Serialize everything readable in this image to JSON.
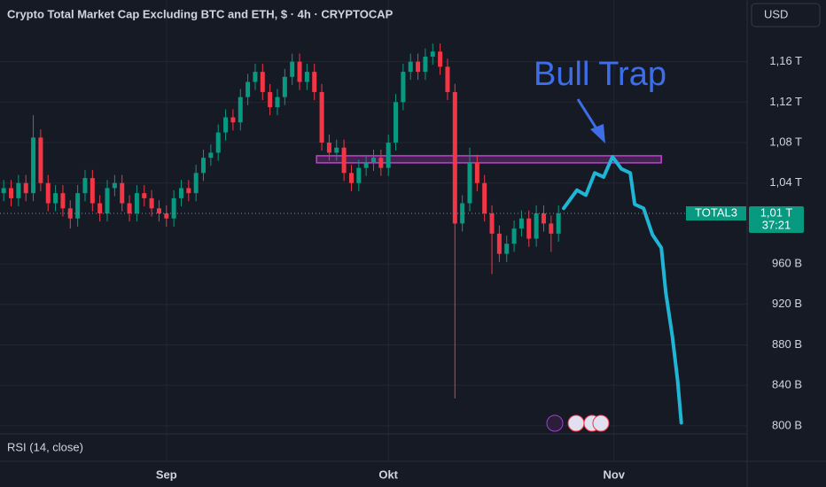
{
  "chart_data": {
    "type": "candlestick",
    "title": "Crypto Total Market Cap Excluding BTC and ETH, $ · 4h · CRYPTOCAP",
    "currency_button": "USD",
    "pane_label": "RSI (14, close)",
    "annotation": "Bull Trap",
    "up_color": "#089981",
    "down_color": "#f23645",
    "xlim": [
      -0.5,
      100.5
    ],
    "ylim": [
      792,
      1221
    ],
    "xticks": [
      {
        "value": 22,
        "label": "Sep"
      },
      {
        "value": 52,
        "label": "Okt"
      },
      {
        "value": 82.5,
        "label": "Nov"
      }
    ],
    "yticks": [
      {
        "value": 800,
        "label": "800 B"
      },
      {
        "value": 840,
        "label": "840 B"
      },
      {
        "value": 880,
        "label": "880 B"
      },
      {
        "value": 920,
        "label": "920 B"
      },
      {
        "value": 960,
        "label": "960 B"
      },
      {
        "value": 1040,
        "label": "1,04 T"
      },
      {
        "value": 1080,
        "label": "1,08 T"
      },
      {
        "value": 1120,
        "label": "1,12 T"
      },
      {
        "value": 1160,
        "label": "1,16 T"
      }
    ],
    "grid": true,
    "candles": {
      "open": [
        1030,
        1035,
        1025,
        1040,
        1030,
        1085,
        1040,
        1020,
        1030,
        1015,
        1005,
        1030,
        1045,
        1020,
        1010,
        1035,
        1040,
        1020,
        1010,
        1030,
        1025,
        1015,
        1010,
        1005,
        1025,
        1035,
        1030,
        1050,
        1065,
        1070,
        1090,
        1105,
        1100,
        1125,
        1140,
        1150,
        1130,
        1115,
        1125,
        1145,
        1160,
        1140,
        1150,
        1130,
        1080,
        1070,
        1075,
        1050,
        1040,
        1055,
        1060,
        1065,
        1055,
        1080,
        1120,
        1150,
        1160,
        1150,
        1165,
        1170,
        1155,
        1130,
        1000,
        1020,
        1060,
        1040,
        1010,
        990,
        970,
        980,
        995,
        1005,
        985,
        1010,
        1000,
        990
      ],
      "high": [
        1043,
        1043,
        1048,
        1048,
        1107,
        1093,
        1048,
        1038,
        1038,
        1023,
        1038,
        1053,
        1053,
        1028,
        1043,
        1048,
        1048,
        1028,
        1038,
        1038,
        1033,
        1023,
        1018,
        1033,
        1043,
        1043,
        1058,
        1073,
        1078,
        1098,
        1113,
        1113,
        1133,
        1148,
        1158,
        1158,
        1138,
        1133,
        1153,
        1168,
        1168,
        1158,
        1158,
        1138,
        1088,
        1083,
        1083,
        1058,
        1063,
        1068,
        1073,
        1073,
        1088,
        1128,
        1158,
        1168,
        1168,
        1173,
        1178,
        1178,
        1163,
        1138,
        1028,
        1075,
        1068,
        1048,
        1018,
        998,
        988,
        1003,
        1013,
        1013,
        1018,
        1018,
        1008,
        1018
      ],
      "low": [
        1022,
        1017,
        1017,
        1022,
        1022,
        1032,
        1012,
        1012,
        1007,
        995,
        997,
        1022,
        1012,
        1002,
        1002,
        1027,
        1012,
        1002,
        1002,
        1017,
        1007,
        1002,
        997,
        997,
        1017,
        1022,
        1022,
        1042,
        1057,
        1062,
        1082,
        1092,
        1092,
        1117,
        1132,
        1122,
        1107,
        1107,
        1117,
        1137,
        1132,
        1132,
        1122,
        1072,
        1062,
        1062,
        1042,
        1032,
        1032,
        1047,
        1052,
        1047,
        1047,
        1072,
        1112,
        1142,
        1142,
        1142,
        1157,
        1147,
        1122,
        827,
        992,
        1012,
        1032,
        1002,
        950,
        962,
        962,
        972,
        987,
        977,
        977,
        992,
        972,
        982
      ],
      "close": [
        1035,
        1025,
        1040,
        1030,
        1085,
        1040,
        1020,
        1030,
        1015,
        1005,
        1030,
        1045,
        1020,
        1010,
        1035,
        1040,
        1020,
        1010,
        1030,
        1025,
        1015,
        1010,
        1005,
        1025,
        1035,
        1030,
        1050,
        1065,
        1070,
        1090,
        1105,
        1100,
        1125,
        1140,
        1150,
        1130,
        1115,
        1125,
        1145,
        1160,
        1140,
        1150,
        1130,
        1080,
        1070,
        1075,
        1050,
        1040,
        1055,
        1060,
        1065,
        1055,
        1080,
        1120,
        1150,
        1160,
        1150,
        1165,
        1170,
        1155,
        1130,
        1000,
        1020,
        1060,
        1040,
        1010,
        990,
        970,
        980,
        995,
        1005,
        985,
        1010,
        1000,
        990,
        1010
      ]
    },
    "forecast": {
      "color": "#1fb6d6",
      "x": [
        75.7,
        77.5,
        78.7,
        79.9,
        81.1,
        82.3,
        83.5,
        84.7,
        85.3,
        86.5,
        87.7,
        88.9,
        89.5,
        90.4,
        91.1,
        91.6
      ],
      "values": [
        1015,
        1033,
        1028,
        1050,
        1046,
        1066,
        1054,
        1050,
        1019,
        1015,
        989,
        976,
        932,
        888,
        845,
        803
      ]
    },
    "resistance_zone": {
      "xlim": [
        42.3,
        88.9
      ],
      "ylim": [
        1060,
        1067
      ],
      "color": "#c040d0"
    },
    "last_price": {
      "value": 1010,
      "label": "1,01 T",
      "countdown": "37:21",
      "symbol": "TOTAL3"
    }
  }
}
